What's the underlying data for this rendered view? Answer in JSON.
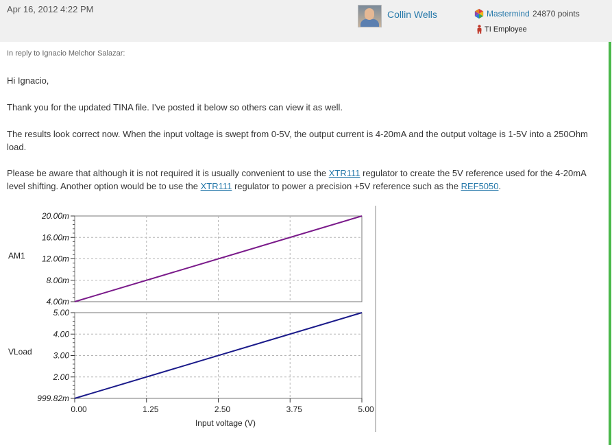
{
  "post": {
    "date": "Apr 16, 2012 4:22 PM",
    "author": "Collin Wells",
    "rank": "Mastermind",
    "points": "24870 points",
    "employee_label": "TI Employee",
    "reply_to": "In reply to Ignacio Melchor Salazar:"
  },
  "body": {
    "greeting": "Hi Ignacio,",
    "thanks": "Thank you for the updated TINA file.  I've posted it below so others can view it as well.",
    "results": "The results look correct now.  When the input voltage is swept from 0-5V, the output current is 4-20mA and the output voltage is 1-5V into a 250Ohm load.",
    "note_part1": "Please be aware that although it is not required it is usually convenient to use the ",
    "link_xtr1": "XTR111",
    "note_part2": " regulator to create the 5V reference used for the 4-20mA level shifting.  Another option would be to use the ",
    "link_xtr2": "XTR111",
    "note_part3": " regulator to power a precision +5V reference such as the ",
    "link_ref": "REF5050",
    "note_end": "."
  },
  "colors": {
    "link": "#2779aa",
    "series_am1": "#7a1a8a",
    "series_vload": "#1a1a8a",
    "accent_border": "#4cb84c"
  },
  "chart_data": [
    {
      "type": "line",
      "series": [
        {
          "name": "AM1",
          "x": [
            0,
            5
          ],
          "y": [
            0.004,
            0.02
          ]
        }
      ],
      "ylabel": "AM1",
      "ylim": [
        0.004,
        0.02
      ],
      "yticks": [
        "4.00m",
        "8.00m",
        "12.00m",
        "16.00m",
        "20.00m"
      ],
      "xlim": [
        0,
        5
      ],
      "grid": true
    },
    {
      "type": "line",
      "series": [
        {
          "name": "VLoad",
          "x": [
            0,
            5
          ],
          "y": [
            0.99982,
            5
          ]
        }
      ],
      "ylabel": "VLoad",
      "ylim": [
        0.99982,
        5
      ],
      "yticks": [
        "999.82m",
        "2.00",
        "3.00",
        "4.00",
        "5.00"
      ],
      "xlim": [
        0,
        5
      ],
      "xticks": [
        "0.00",
        "1.25",
        "2.50",
        "3.75",
        "5.00"
      ],
      "xlabel": "Input voltage (V)",
      "grid": true
    }
  ]
}
